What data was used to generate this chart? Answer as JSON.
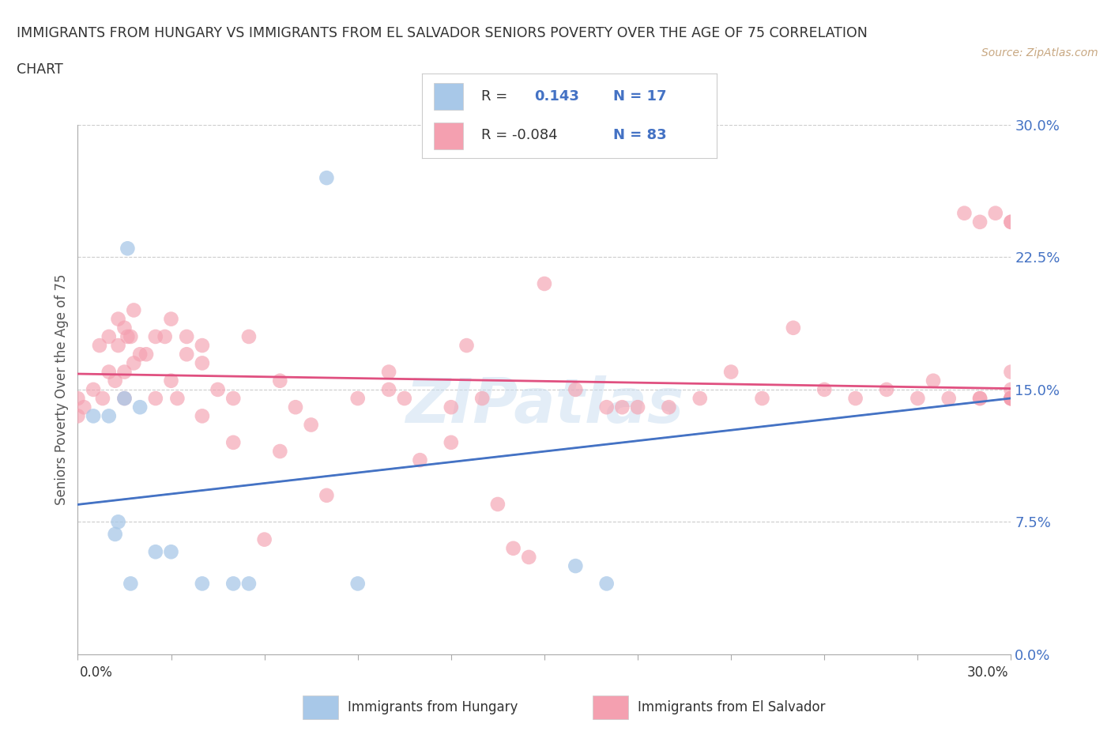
{
  "title_line1": "IMMIGRANTS FROM HUNGARY VS IMMIGRANTS FROM EL SALVADOR SENIORS POVERTY OVER THE AGE OF 75 CORRELATION",
  "title_line2": "CHART",
  "source": "Source: ZipAtlas.com",
  "ylabel": "Seniors Poverty Over the Age of 75",
  "xmin": 0.0,
  "xmax": 0.3,
  "ymin": 0.0,
  "ymax": 0.3,
  "yticks": [
    0.0,
    0.075,
    0.15,
    0.225,
    0.3
  ],
  "ytick_labels": [
    "0.0%",
    "7.5%",
    "15.0%",
    "22.5%",
    "30.0%"
  ],
  "hungary_color": "#a8c8e8",
  "el_salvador_color": "#f4a0b0",
  "hungary_line_color": "#4472c4",
  "el_salvador_line_color": "#e05080",
  "hungary_R": 0.143,
  "hungary_N": 17,
  "el_salvador_R": -0.084,
  "el_salvador_N": 83,
  "hungary_x": [
    0.005,
    0.01,
    0.012,
    0.013,
    0.015,
    0.016,
    0.017,
    0.02,
    0.025,
    0.03,
    0.04,
    0.05,
    0.055,
    0.08,
    0.09,
    0.16,
    0.17
  ],
  "hungary_y": [
    0.135,
    0.135,
    0.068,
    0.075,
    0.145,
    0.23,
    0.04,
    0.14,
    0.058,
    0.058,
    0.04,
    0.04,
    0.04,
    0.27,
    0.04,
    0.05,
    0.04
  ],
  "el_salvador_x": [
    0.0,
    0.0,
    0.002,
    0.005,
    0.007,
    0.008,
    0.01,
    0.01,
    0.012,
    0.013,
    0.013,
    0.015,
    0.015,
    0.015,
    0.016,
    0.017,
    0.018,
    0.018,
    0.02,
    0.022,
    0.025,
    0.025,
    0.028,
    0.03,
    0.03,
    0.032,
    0.035,
    0.035,
    0.04,
    0.04,
    0.04,
    0.045,
    0.05,
    0.05,
    0.055,
    0.06,
    0.065,
    0.065,
    0.07,
    0.075,
    0.08,
    0.09,
    0.1,
    0.1,
    0.105,
    0.11,
    0.12,
    0.12,
    0.125,
    0.13,
    0.135,
    0.14,
    0.145,
    0.15,
    0.16,
    0.17,
    0.175,
    0.18,
    0.19,
    0.2,
    0.21,
    0.22,
    0.23,
    0.24,
    0.25,
    0.26,
    0.27,
    0.275,
    0.28,
    0.285,
    0.29,
    0.29,
    0.295,
    0.29,
    0.3,
    0.3,
    0.3,
    0.3,
    0.3,
    0.3,
    0.3,
    0.3,
    0.3
  ],
  "el_salvador_y": [
    0.135,
    0.145,
    0.14,
    0.15,
    0.175,
    0.145,
    0.16,
    0.18,
    0.155,
    0.175,
    0.19,
    0.145,
    0.16,
    0.185,
    0.18,
    0.18,
    0.165,
    0.195,
    0.17,
    0.17,
    0.145,
    0.18,
    0.18,
    0.155,
    0.19,
    0.145,
    0.17,
    0.18,
    0.135,
    0.165,
    0.175,
    0.15,
    0.12,
    0.145,
    0.18,
    0.065,
    0.115,
    0.155,
    0.14,
    0.13,
    0.09,
    0.145,
    0.15,
    0.16,
    0.145,
    0.11,
    0.12,
    0.14,
    0.175,
    0.145,
    0.085,
    0.06,
    0.055,
    0.21,
    0.15,
    0.14,
    0.14,
    0.14,
    0.14,
    0.145,
    0.16,
    0.145,
    0.185,
    0.15,
    0.145,
    0.15,
    0.145,
    0.155,
    0.145,
    0.25,
    0.145,
    0.145,
    0.25,
    0.245,
    0.145,
    0.145,
    0.15,
    0.16,
    0.245,
    0.245,
    0.145,
    0.145,
    0.145
  ],
  "xtick_positions": [
    0.0,
    0.03,
    0.06,
    0.09,
    0.12,
    0.15,
    0.18,
    0.21,
    0.24,
    0.27,
    0.3
  ]
}
